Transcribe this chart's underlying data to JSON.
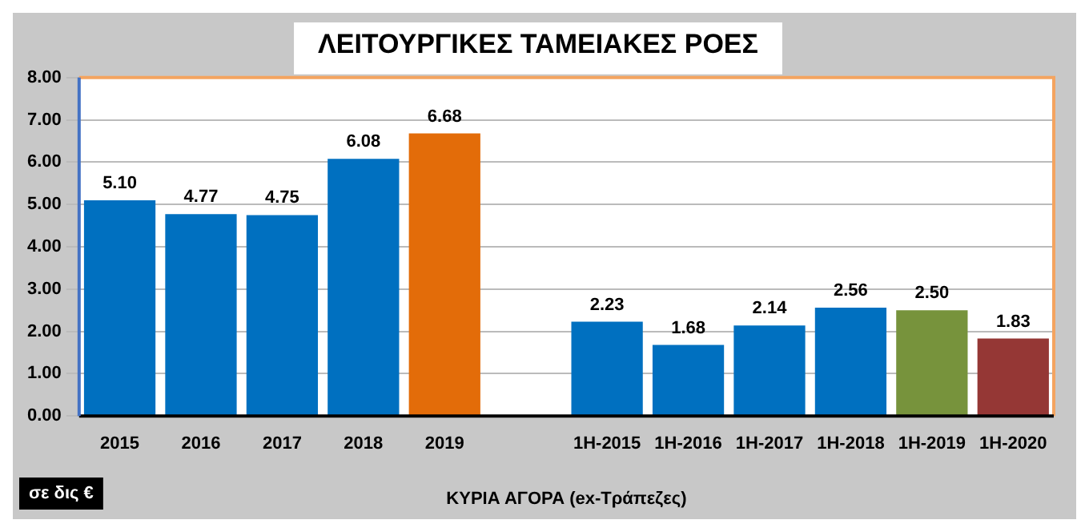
{
  "chart_data": {
    "type": "bar",
    "title": "ΛΕΙΤΟΥΡΓΙΚΕΣ ΤΑΜΕΙΑΚΕΣ ΡΟΕΣ",
    "xlabel": "ΚΥΡΙΑ ΑΓΟΡΑ (ex-Τράπεζες)",
    "categories": [
      "2015",
      "2016",
      "2017",
      "2018",
      "2019",
      null,
      "1H-2015",
      "1H-2016",
      "1H-2017",
      "1H-2018",
      "1H-2019",
      "1H-2020"
    ],
    "values": [
      5.1,
      4.77,
      4.75,
      6.08,
      6.68,
      null,
      2.23,
      1.68,
      2.14,
      2.56,
      2.5,
      1.83
    ],
    "value_labels": [
      "5.10",
      "4.77",
      "4.75",
      "6.08",
      "6.68",
      null,
      "2.23",
      "1.68",
      "2.14",
      "2.56",
      "2.50",
      "1.83"
    ],
    "colors": [
      "#0070c0",
      "#0070c0",
      "#0070c0",
      "#0070c0",
      "#e36c09",
      "#0070c0",
      "#0070c0",
      "#0070c0",
      "#0070c0",
      "#0070c0",
      "#77933c",
      "#953735"
    ],
    "ylim": [
      0,
      8
    ],
    "yticks": [
      {
        "value": 0,
        "label": "0.00"
      },
      {
        "value": 1,
        "label": "1.00"
      },
      {
        "value": 2,
        "label": "2.00"
      },
      {
        "value": 3,
        "label": "3.00"
      },
      {
        "value": 4,
        "label": "4.00"
      },
      {
        "value": 5,
        "label": "5.00"
      },
      {
        "value": 6,
        "label": "6.00"
      },
      {
        "value": 7,
        "label": "7.00"
      },
      {
        "value": 8,
        "label": "8.00"
      }
    ],
    "grid": "y",
    "legend": false,
    "annotations": [
      "σε δις €"
    ]
  }
}
